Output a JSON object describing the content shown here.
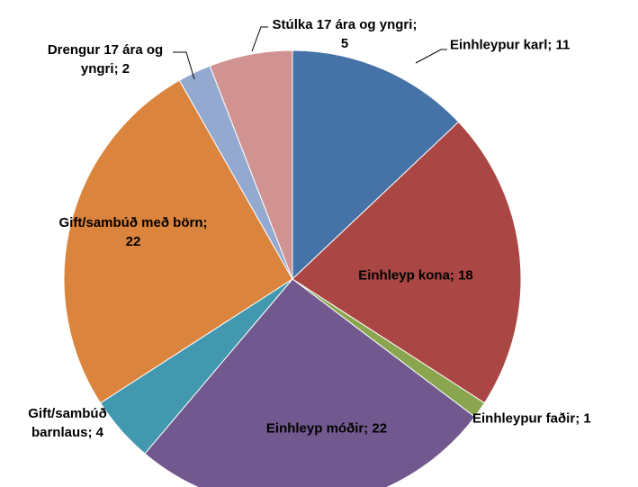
{
  "chart_data": {
    "type": "pie",
    "categories": [
      "Einhleypur karl",
      "Einhleyp kona",
      "Einhleypur faðir",
      "Einhleyp móðir",
      "Gift/sambúð barnlaus",
      "Gift/sambúð með börn",
      "Drengur 17 ára og yngri",
      "Stúlka 17 ára og yngri"
    ],
    "values": [
      11,
      18,
      1,
      22,
      4,
      22,
      2,
      5
    ],
    "colors": [
      "#4572a7",
      "#aa4643",
      "#89a54e",
      "#71588f",
      "#4198af",
      "#db843d",
      "#93a9cf",
      "#d19392"
    ],
    "label_separator": "; "
  }
}
